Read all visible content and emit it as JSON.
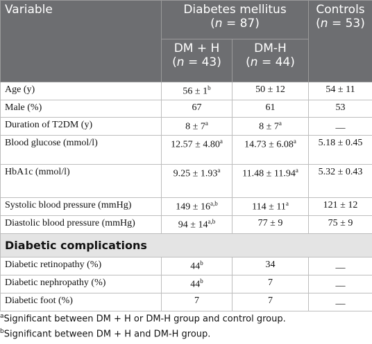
{
  "header": {
    "variable": "Variable",
    "group": {
      "label": "Diabetes mellitus",
      "count": [
        "(",
        "n",
        " = 87)"
      ]
    },
    "controls": {
      "label": "Controls",
      "count": [
        "(",
        "n",
        " = 53)"
      ]
    },
    "subgroups": [
      {
        "label": "DM + H",
        "count": [
          "(",
          "n",
          " = 43)"
        ]
      },
      {
        "label": "DM-H",
        "count": [
          "(",
          "n",
          " = 44)"
        ]
      }
    ]
  },
  "rows": [
    {
      "variable": "Age (y)",
      "cells": [
        {
          "text": "56 ± 1",
          "sup": "b"
        },
        {
          "text": "50 ± 12"
        },
        {
          "text": "54 ± 11"
        }
      ]
    },
    {
      "variable": "Male (%)",
      "cells": [
        {
          "text": "67"
        },
        {
          "text": "61"
        },
        {
          "text": "53"
        }
      ]
    },
    {
      "variable": "Duration of T2DM (y)",
      "cells": [
        {
          "text": "8 ± 7",
          "sup": "a"
        },
        {
          "text": "8 ± 7",
          "sup": "a"
        },
        {
          "text": "__"
        }
      ]
    },
    {
      "variable": "Blood glucose (mmol/l)",
      "cells": [
        {
          "text": "12.57 ± 4.80",
          "sup": "a"
        },
        {
          "text": "14.73 ± 6.08",
          "sup": "a"
        },
        {
          "text": "5.18 ± 0.45"
        }
      ]
    },
    {
      "variable": "HbA1c (mmol/l)",
      "cells": [
        {
          "text": "9.25 ± 1.93",
          "sup": "a"
        },
        {
          "text": "11.48 ± 11.94",
          "sup": "a"
        },
        {
          "text": "5.32 ± 0.43"
        }
      ]
    },
    {
      "variable": "Systolic blood pressure (mmHg)",
      "cells": [
        {
          "text": "149 ± 16",
          "sup": "a,b"
        },
        {
          "text": "114 ± 11",
          "sup": "a"
        },
        {
          "text": "121 ± 12"
        }
      ]
    },
    {
      "variable": "Diastolic blood pressure (mmHg)",
      "cells": [
        {
          "text": "94 ± 14",
          "sup": "a,b"
        },
        {
          "text": "77 ± 9"
        },
        {
          "text": "75 ± 9"
        }
      ]
    },
    {
      "section": "Diabetic complications"
    },
    {
      "variable": "Diabetic retinopathy (%)",
      "cells": [
        {
          "text": "44",
          "sup": "b"
        },
        {
          "text": "34"
        },
        {
          "text": "__"
        }
      ]
    },
    {
      "variable": "Diabetic nephropathy (%)",
      "cells": [
        {
          "text": "44",
          "sup": "b"
        },
        {
          "text": "7"
        },
        {
          "text": "__"
        }
      ]
    },
    {
      "variable": "Diabetic foot (%)",
      "cells": [
        {
          "text": "7"
        },
        {
          "text": "7"
        },
        {
          "text": "__"
        }
      ]
    }
  ],
  "footnotes": [
    {
      "mark": "a",
      "text": "Significant between DM + H or DM-H group and control group."
    },
    {
      "mark": "b",
      "text": "Significant between DM + H and DM-H group."
    }
  ]
}
